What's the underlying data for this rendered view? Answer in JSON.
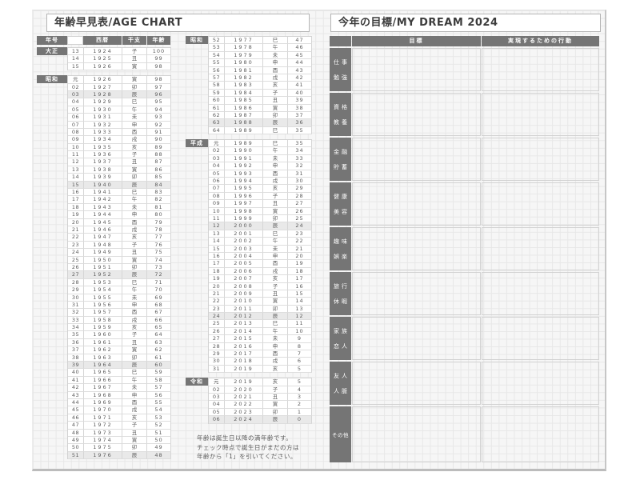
{
  "age_chart": {
    "title": "年齢早見表/AGE CHART",
    "headers": {
      "era": "年号",
      "seireki": "西暦",
      "eto": "干支",
      "age": "年齢"
    },
    "highlight_zodiac": "辰",
    "columns": [
      {
        "blocks": [
          {
            "era": "大正",
            "rows": [
              [
                "13",
                "1924",
                "子",
                "100"
              ],
              [
                "14",
                "1925",
                "丑",
                "99"
              ],
              [
                "15",
                "1926",
                "寅",
                "98"
              ]
            ]
          },
          {
            "era": "昭和",
            "rows": [
              [
                "元",
                "1926",
                "寅",
                "98"
              ],
              [
                "02",
                "1927",
                "卯",
                "97"
              ],
              [
                "03",
                "1928",
                "辰",
                "96"
              ],
              [
                "04",
                "1929",
                "巳",
                "95"
              ],
              [
                "05",
                "1930",
                "午",
                "94"
              ],
              [
                "06",
                "1931",
                "未",
                "93"
              ],
              [
                "07",
                "1932",
                "申",
                "92"
              ],
              [
                "08",
                "1933",
                "酉",
                "91"
              ],
              [
                "09",
                "1934",
                "戌",
                "90"
              ],
              [
                "10",
                "1935",
                "亥",
                "89"
              ],
              [
                "11",
                "1936",
                "子",
                "88"
              ],
              [
                "12",
                "1937",
                "丑",
                "87"
              ],
              [
                "13",
                "1938",
                "寅",
                "86"
              ],
              [
                "14",
                "1939",
                "卯",
                "85"
              ],
              [
                "15",
                "1940",
                "辰",
                "84"
              ],
              [
                "16",
                "1941",
                "巳",
                "83"
              ],
              [
                "17",
                "1942",
                "午",
                "82"
              ],
              [
                "18",
                "1943",
                "未",
                "81"
              ],
              [
                "19",
                "1944",
                "申",
                "80"
              ],
              [
                "20",
                "1945",
                "酉",
                "79"
              ],
              [
                "21",
                "1946",
                "戌",
                "78"
              ],
              [
                "22",
                "1947",
                "亥",
                "77"
              ],
              [
                "23",
                "1948",
                "子",
                "76"
              ],
              [
                "24",
                "1949",
                "丑",
                "75"
              ],
              [
                "25",
                "1950",
                "寅",
                "74"
              ],
              [
                "26",
                "1951",
                "卯",
                "73"
              ],
              [
                "27",
                "1952",
                "辰",
                "72"
              ],
              [
                "28",
                "1953",
                "巳",
                "71"
              ],
              [
                "29",
                "1954",
                "午",
                "70"
              ],
              [
                "30",
                "1955",
                "未",
                "69"
              ],
              [
                "31",
                "1956",
                "申",
                "68"
              ],
              [
                "32",
                "1957",
                "酉",
                "67"
              ],
              [
                "33",
                "1958",
                "戌",
                "66"
              ],
              [
                "34",
                "1959",
                "亥",
                "65"
              ],
              [
                "35",
                "1960",
                "子",
                "64"
              ],
              [
                "36",
                "1961",
                "丑",
                "63"
              ],
              [
                "37",
                "1962",
                "寅",
                "62"
              ],
              [
                "38",
                "1963",
                "卯",
                "61"
              ],
              [
                "39",
                "1964",
                "辰",
                "60"
              ],
              [
                "40",
                "1965",
                "巳",
                "59"
              ],
              [
                "41",
                "1966",
                "午",
                "58"
              ],
              [
                "42",
                "1967",
                "未",
                "57"
              ],
              [
                "43",
                "1968",
                "申",
                "56"
              ],
              [
                "44",
                "1969",
                "酉",
                "55"
              ],
              [
                "45",
                "1970",
                "戌",
                "54"
              ],
              [
                "46",
                "1971",
                "亥",
                "53"
              ],
              [
                "47",
                "1972",
                "子",
                "52"
              ],
              [
                "48",
                "1973",
                "丑",
                "51"
              ],
              [
                "49",
                "1974",
                "寅",
                "50"
              ],
              [
                "50",
                "1975",
                "卯",
                "49"
              ],
              [
                "51",
                "1976",
                "辰",
                "48"
              ]
            ]
          }
        ]
      },
      {
        "blocks": [
          {
            "era": "昭和",
            "rows": [
              [
                "52",
                "1977",
                "巳",
                "47"
              ],
              [
                "53",
                "1978",
                "午",
                "46"
              ],
              [
                "54",
                "1979",
                "未",
                "45"
              ],
              [
                "55",
                "1980",
                "申",
                "44"
              ],
              [
                "56",
                "1981",
                "酉",
                "43"
              ],
              [
                "57",
                "1982",
                "戌",
                "42"
              ],
              [
                "58",
                "1983",
                "亥",
                "41"
              ],
              [
                "59",
                "1984",
                "子",
                "40"
              ],
              [
                "60",
                "1985",
                "丑",
                "39"
              ],
              [
                "61",
                "1986",
                "寅",
                "38"
              ],
              [
                "62",
                "1987",
                "卯",
                "37"
              ],
              [
                "63",
                "1988",
                "辰",
                "36"
              ],
              [
                "64",
                "1989",
                "巳",
                "35"
              ]
            ]
          },
          {
            "era": "平成",
            "rows": [
              [
                "元",
                "1989",
                "巳",
                "35"
              ],
              [
                "02",
                "1990",
                "午",
                "34"
              ],
              [
                "03",
                "1991",
                "未",
                "33"
              ],
              [
                "04",
                "1992",
                "申",
                "32"
              ],
              [
                "05",
                "1993",
                "酉",
                "31"
              ],
              [
                "06",
                "1994",
                "戌",
                "30"
              ],
              [
                "07",
                "1995",
                "亥",
                "29"
              ],
              [
                "08",
                "1996",
                "子",
                "28"
              ],
              [
                "09",
                "1997",
                "丑",
                "27"
              ],
              [
                "10",
                "1998",
                "寅",
                "26"
              ],
              [
                "11",
                "1999",
                "卯",
                "25"
              ],
              [
                "12",
                "2000",
                "辰",
                "24"
              ],
              [
                "13",
                "2001",
                "巳",
                "23"
              ],
              [
                "14",
                "2002",
                "午",
                "22"
              ],
              [
                "15",
                "2003",
                "未",
                "21"
              ],
              [
                "16",
                "2004",
                "申",
                "20"
              ],
              [
                "17",
                "2005",
                "酉",
                "19"
              ],
              [
                "18",
                "2006",
                "戌",
                "18"
              ],
              [
                "19",
                "2007",
                "亥",
                "17"
              ],
              [
                "20",
                "2008",
                "子",
                "16"
              ],
              [
                "21",
                "2009",
                "丑",
                "15"
              ],
              [
                "22",
                "2010",
                "寅",
                "14"
              ],
              [
                "23",
                "2011",
                "卯",
                "13"
              ],
              [
                "24",
                "2012",
                "辰",
                "12"
              ],
              [
                "25",
                "2013",
                "巳",
                "11"
              ],
              [
                "26",
                "2014",
                "午",
                "10"
              ],
              [
                "27",
                "2015",
                "未",
                "9"
              ],
              [
                "28",
                "2016",
                "申",
                "8"
              ],
              [
                "29",
                "2017",
                "酉",
                "7"
              ],
              [
                "30",
                "2018",
                "戌",
                "6"
              ],
              [
                "31",
                "2019",
                "亥",
                "5"
              ]
            ]
          },
          {
            "era": "令和",
            "rows": [
              [
                "元",
                "2019",
                "亥",
                "5"
              ],
              [
                "02",
                "2020",
                "子",
                "4"
              ],
              [
                "03",
                "2021",
                "丑",
                "3"
              ],
              [
                "04",
                "2022",
                "寅",
                "2"
              ],
              [
                "05",
                "2023",
                "卯",
                "1"
              ],
              [
                "06",
                "2024",
                "辰",
                "0"
              ]
            ]
          }
        ]
      }
    ],
    "note_lines": [
      "年齢は誕生日以降の満年齢です。",
      "チェック時点で誕生日がまだの方は",
      "年齢から「1」を引いてください。"
    ]
  },
  "dream": {
    "title": "今年の目標/MY DREAM 2024",
    "headers": {
      "goal": "目標",
      "action": "実現するための行動"
    },
    "categories": [
      {
        "lines": [
          "仕事",
          "勉強"
        ]
      },
      {
        "lines": [
          "資格",
          "教養"
        ]
      },
      {
        "lines": [
          "金融",
          "貯蓄"
        ]
      },
      {
        "lines": [
          "健康",
          "美容"
        ]
      },
      {
        "lines": [
          "趣味",
          "娯楽"
        ]
      },
      {
        "lines": [
          "旅行",
          "休暇"
        ]
      },
      {
        "lines": [
          "家族",
          "恋人"
        ]
      },
      {
        "lines": [
          "友人",
          "人脈"
        ]
      },
      {
        "lines": [
          "その他"
        ]
      }
    ]
  },
  "colors": {
    "header_gray": "#757575",
    "dragon_highlight": "#e9e9e9",
    "grid_line": "#e7e7e7",
    "page_bg": "#f6f6f6"
  }
}
